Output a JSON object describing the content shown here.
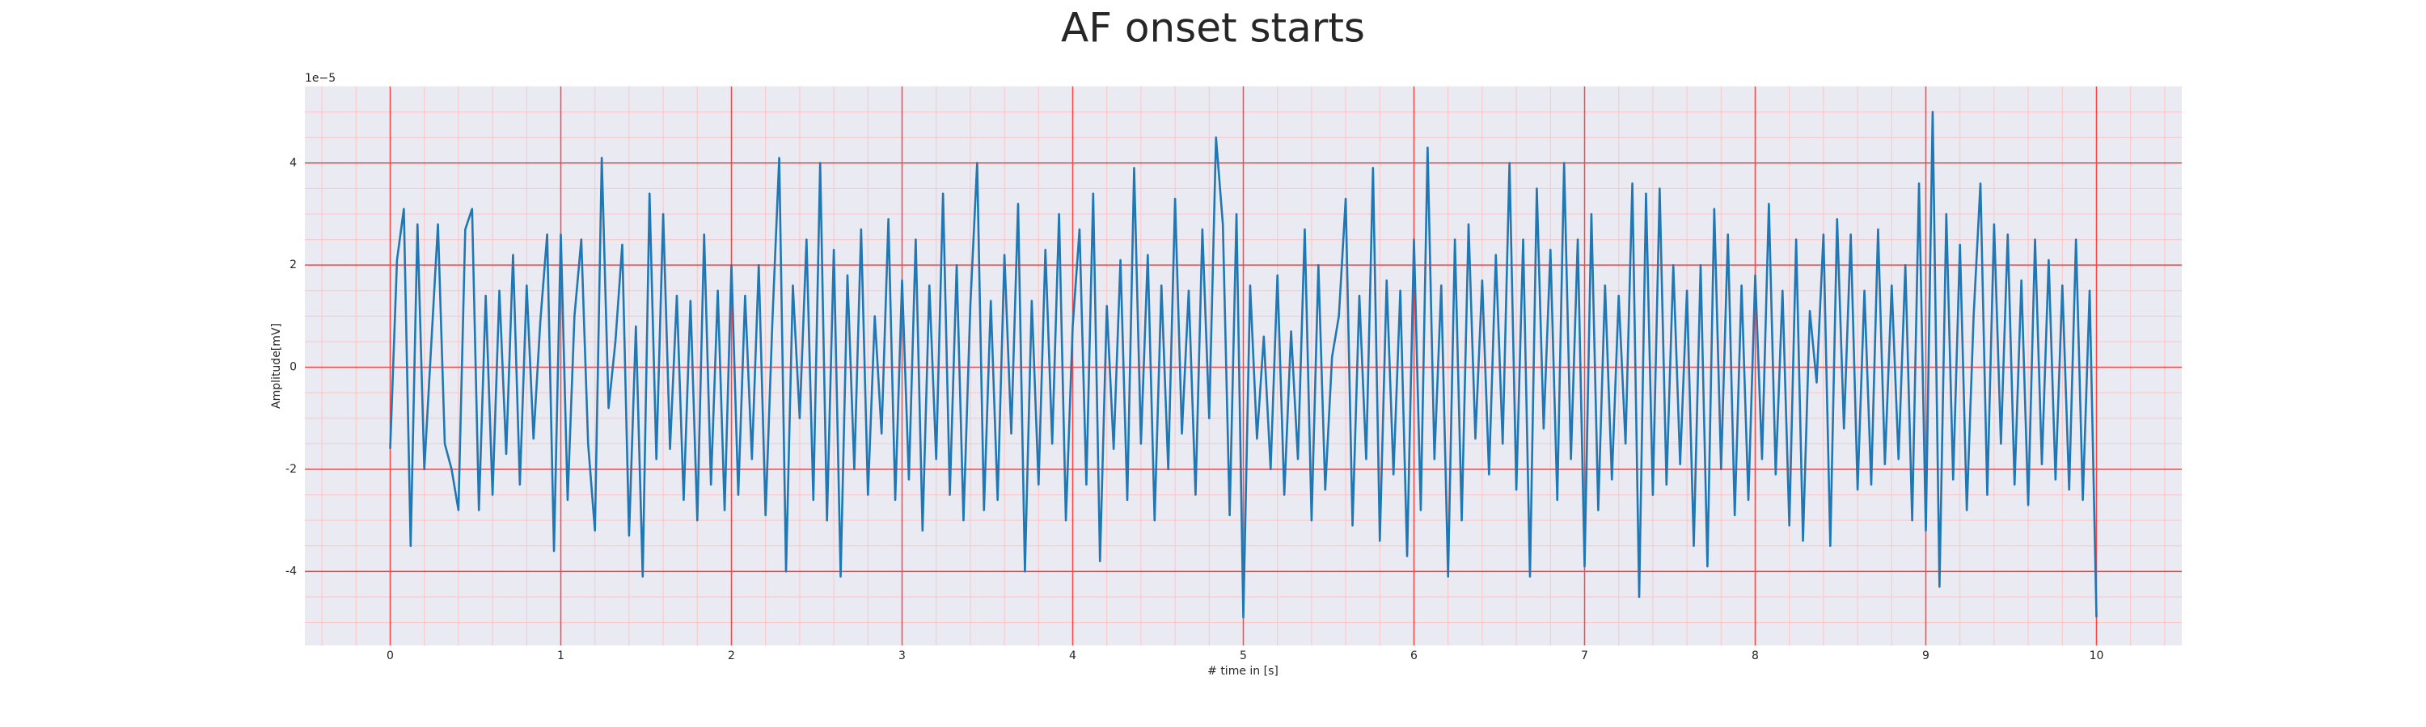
{
  "chart_data": {
    "type": "line",
    "title": "AF onset starts",
    "xlabel": "# time in [s]",
    "ylabel": "Amplitude[mV]",
    "y_offset_text": "1e−5",
    "color": "#1f77b4",
    "background": "#eaeaf2",
    "grid": true,
    "grid_color": "#ff4444",
    "minor_grid_color": "#ffc4c4",
    "xlim": [
      -0.5,
      10.5
    ],
    "ylim": [
      -5.45,
      5.5
    ],
    "xticks": [
      0,
      1,
      2,
      3,
      4,
      5,
      6,
      7,
      8,
      9,
      10
    ],
    "yticks": [
      -4,
      -2,
      0,
      2,
      4
    ],
    "xminorticks": [
      -0.4,
      -0.2,
      0.2,
      0.4,
      0.6,
      0.8,
      1.2,
      1.4,
      1.6,
      1.8,
      2.2,
      2.4,
      2.6,
      2.8,
      3.2,
      3.4,
      3.6,
      3.8,
      4.2,
      4.4,
      4.6,
      4.8,
      5.2,
      5.4,
      5.6,
      5.8,
      6.2,
      6.4,
      6.6,
      6.8,
      7.2,
      7.4,
      7.6,
      7.8,
      8.2,
      8.4,
      8.6,
      8.8,
      9.2,
      9.4,
      9.6,
      9.8,
      10.2,
      10.4
    ],
    "yminorticks": [
      -5,
      -4.5,
      -3.5,
      -3,
      -2.5,
      -1.5,
      -1,
      -0.5,
      0.5,
      1,
      1.5,
      2.5,
      3,
      3.5,
      4.5,
      5
    ],
    "x": [
      0,
      0.04,
      0.08,
      0.12,
      0.16,
      0.2,
      0.24,
      0.28,
      0.32,
      0.36,
      0.4,
      0.44,
      0.48,
      0.52,
      0.56,
      0.6,
      0.64,
      0.68,
      0.72,
      0.76,
      0.8,
      0.84,
      0.88,
      0.92,
      0.96,
      1,
      1.04,
      1.08,
      1.12,
      1.16,
      1.2,
      1.24,
      1.28,
      1.32,
      1.36,
      1.4,
      1.44,
      1.48,
      1.52,
      1.56,
      1.6,
      1.64,
      1.68,
      1.72,
      1.76,
      1.8,
      1.84,
      1.88,
      1.92,
      1.96,
      2,
      2.04,
      2.08,
      2.12,
      2.16,
      2.2,
      2.24,
      2.28,
      2.32,
      2.36,
      2.4,
      2.44,
      2.48,
      2.52,
      2.56,
      2.6,
      2.64,
      2.68,
      2.72,
      2.76,
      2.8,
      2.84,
      2.88,
      2.92,
      2.96,
      3,
      3.04,
      3.08,
      3.12,
      3.16,
      3.2,
      3.24,
      3.28,
      3.32,
      3.36,
      3.4,
      3.44,
      3.48,
      3.52,
      3.56,
      3.6,
      3.64,
      3.68,
      3.72,
      3.76,
      3.8,
      3.84,
      3.88,
      3.92,
      3.96,
      4,
      4.04,
      4.08,
      4.12,
      4.16,
      4.2,
      4.24,
      4.28,
      4.32,
      4.36,
      4.4,
      4.44,
      4.48,
      4.52,
      4.56,
      4.6,
      4.64,
      4.68,
      4.72,
      4.76,
      4.8,
      4.84,
      4.88,
      4.92,
      4.96,
      5,
      5.04,
      5.08,
      5.12,
      5.16,
      5.2,
      5.24,
      5.28,
      5.32,
      5.36,
      5.4,
      5.44,
      5.48,
      5.52,
      5.56,
      5.6,
      5.64,
      5.68,
      5.72,
      5.76,
      5.8,
      5.84,
      5.88,
      5.92,
      5.96,
      6,
      6.04,
      6.08,
      6.12,
      6.16,
      6.2,
      6.24,
      6.28,
      6.32,
      6.36,
      6.4,
      6.44,
      6.48,
      6.52,
      6.56,
      6.6,
      6.64,
      6.68,
      6.72,
      6.76,
      6.8,
      6.84,
      6.88,
      6.92,
      6.96,
      7,
      7.04,
      7.08,
      7.12,
      7.16,
      7.2,
      7.24,
      7.28,
      7.32,
      7.36,
      7.4,
      7.44,
      7.48,
      7.52,
      7.56,
      7.6,
      7.64,
      7.68,
      7.72,
      7.76,
      7.8,
      7.84,
      7.88,
      7.92,
      7.96,
      8,
      8.04,
      8.08,
      8.12,
      8.16,
      8.2,
      8.24,
      8.28,
      8.32,
      8.36,
      8.4,
      8.44,
      8.48,
      8.52,
      8.56,
      8.6,
      8.64,
      8.68,
      8.72,
      8.76,
      8.8,
      8.84,
      8.88,
      8.92,
      8.96,
      9,
      9.04,
      9.08,
      9.12,
      9.16,
      9.2,
      9.24,
      9.28,
      9.32,
      9.36,
      9.4,
      9.44,
      9.48,
      9.52,
      9.56,
      9.6,
      9.64,
      9.68,
      9.72,
      9.76,
      9.8,
      9.84,
      9.88,
      9.92,
      9.96,
      10
    ],
    "values": [
      -1.6,
      2.1,
      3.1,
      -3.5,
      2.8,
      -2.0,
      0.4,
      2.8,
      -1.5,
      -2.0,
      -2.8,
      2.7,
      3.1,
      -2.8,
      1.4,
      -2.5,
      1.5,
      -1.7,
      2.2,
      -2.3,
      1.6,
      -1.4,
      0.9,
      2.6,
      -3.6,
      2.6,
      -2.6,
      1.0,
      2.5,
      -1.5,
      -3.2,
      4.1,
      -0.8,
      0.5,
      2.4,
      -3.3,
      0.8,
      -4.1,
      3.4,
      -1.8,
      3.0,
      -1.6,
      1.4,
      -2.6,
      1.3,
      -3.0,
      2.6,
      -2.3,
      1.5,
      -2.8,
      2.0,
      -2.5,
      1.4,
      -1.8,
      2.0,
      -2.9,
      0.9,
      4.1,
      -4.0,
      1.6,
      -1.0,
      2.5,
      -2.6,
      4.0,
      -3.0,
      2.3,
      -4.1,
      1.8,
      -2.0,
      2.7,
      -2.5,
      1.0,
      -1.3,
      2.9,
      -2.6,
      1.7,
      -2.2,
      2.5,
      -3.2,
      1.6,
      -1.8,
      3.4,
      -2.5,
      2.0,
      -3.0,
      1.2,
      4.0,
      -2.8,
      1.3,
      -2.6,
      2.2,
      -1.3,
      3.2,
      -4.0,
      1.3,
      -2.3,
      2.3,
      -1.5,
      3.0,
      -3.0,
      0.8,
      2.7,
      -2.3,
      3.4,
      -3.8,
      1.2,
      -1.6,
      2.1,
      -2.6,
      3.9,
      -1.5,
      2.2,
      -3.0,
      1.6,
      -2.0,
      3.3,
      -1.3,
      1.5,
      -2.5,
      2.7,
      -1.0,
      4.5,
      2.8,
      -2.9,
      3.0,
      -4.9,
      1.6,
      -1.4,
      0.6,
      -2.0,
      1.8,
      -2.5,
      0.7,
      -1.8,
      2.7,
      -3.0,
      2.0,
      -2.4,
      0.2,
      1.0,
      3.3,
      -3.1,
      1.4,
      -1.8,
      3.9,
      -3.4,
      1.7,
      -2.1,
      1.5,
      -3.7,
      2.5,
      -2.8,
      4.3,
      -1.8,
      1.6,
      -4.1,
      2.5,
      -3.0,
      2.8,
      -1.4,
      1.7,
      -2.1,
      2.2,
      -1.5,
      4.0,
      -2.4,
      2.5,
      -4.1,
      3.5,
      -1.2,
      2.3,
      -2.6,
      4.0,
      -1.8,
      2.5,
      -3.9,
      3.0,
      -2.8,
      1.6,
      -2.2,
      1.4,
      -1.5,
      3.6,
      -4.5,
      3.4,
      -2.5,
      3.5,
      -2.3,
      2.0,
      -1.9,
      1.5,
      -3.5,
      2.0,
      -3.9,
      3.1,
      -2.0,
      2.6,
      -2.9,
      1.6,
      -2.6,
      1.8,
      -1.8,
      3.2,
      -2.1,
      1.5,
      -3.1,
      2.5,
      -3.4,
      1.1,
      -0.3,
      2.6,
      -3.5,
      2.9,
      -1.2,
      2.6,
      -2.4,
      1.5,
      -2.3,
      2.7,
      -1.9,
      1.6,
      -1.8,
      2.0,
      -3.0,
      3.6,
      -3.2,
      5.0,
      -4.3,
      3.0,
      -2.2,
      2.4,
      -2.8,
      1.0,
      3.6,
      -2.5,
      2.8,
      -1.5,
      2.6,
      -2.3,
      1.7,
      -2.7,
      2.5,
      -1.9,
      2.1,
      -2.2,
      1.6,
      -2.4,
      2.5,
      -2.6,
      1.5,
      -4.9
    ]
  }
}
